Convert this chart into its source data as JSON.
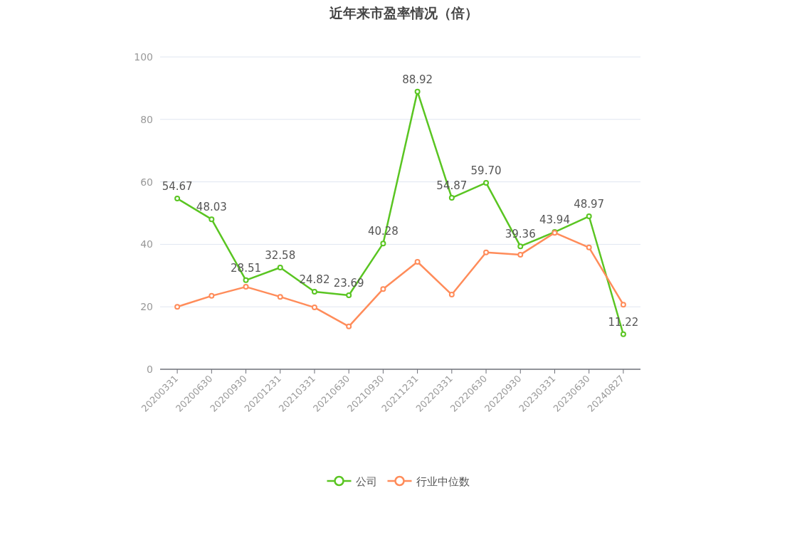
{
  "chart_data": {
    "type": "line",
    "title": "近年来市盈率情况（倍）",
    "categories": [
      "20200331",
      "20200630",
      "20200930",
      "20201231",
      "20210331",
      "20210630",
      "20210930",
      "20211231",
      "20220331",
      "20220630",
      "20220930",
      "20230331",
      "20230630",
      "20240827"
    ],
    "series": [
      {
        "name": "公司",
        "color": "#5ac522",
        "values": [
          54.67,
          48.03,
          28.51,
          32.58,
          24.82,
          23.69,
          40.28,
          88.92,
          54.87,
          59.7,
          39.36,
          43.94,
          48.97,
          11.22
        ],
        "value_labels": [
          "54.67",
          "48.03",
          "28.51",
          "32.58",
          "24.82",
          "23.69",
          "40.28",
          "88.92",
          "54.87",
          "59.70",
          "39.36",
          "43.94",
          "48.97",
          "11.22"
        ]
      },
      {
        "name": "行业中位数",
        "color": "#ff8c5a",
        "values": [
          20.0,
          23.5,
          26.4,
          23.2,
          19.8,
          13.7,
          25.7,
          34.4,
          23.9,
          37.4,
          36.7,
          43.7,
          39.0,
          20.7
        ]
      }
    ],
    "ylim": [
      0,
      100
    ],
    "yticks": [
      0,
      20,
      40,
      60,
      80,
      100
    ],
    "grid": "y",
    "legend": "bottom",
    "marker": "circle"
  }
}
